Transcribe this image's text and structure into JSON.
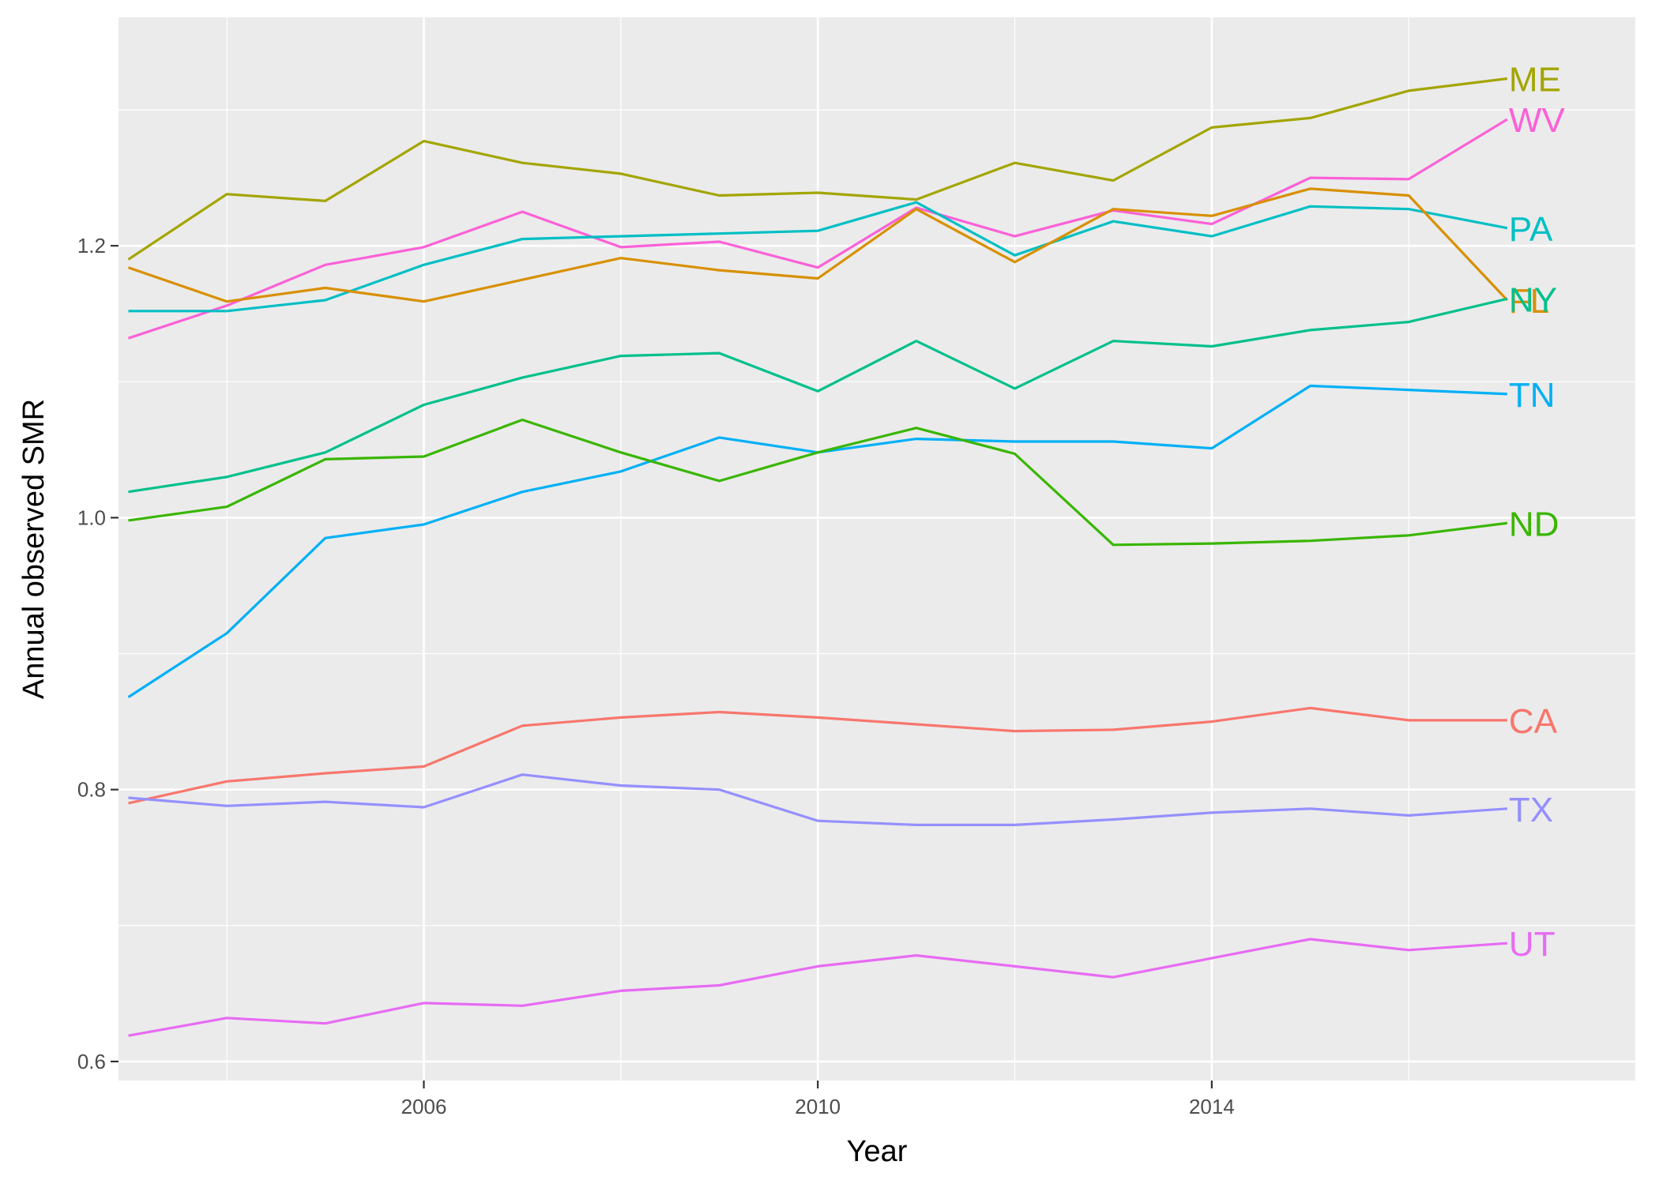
{
  "chart_data": {
    "type": "line",
    "title": "",
    "xlabel": "Year",
    "ylabel": "Annual observed SMR",
    "xlim": [
      2002.9,
      2018.3
    ],
    "ylim": [
      0.586,
      1.368
    ],
    "x_ticks": [
      2006,
      2010,
      2014
    ],
    "y_ticks": [
      0.6,
      0.8,
      1.0,
      1.2
    ],
    "y_tick_labels": [
      "0.6",
      "0.8",
      "1.0",
      "1.2"
    ],
    "x_tick_labels": [
      "2006",
      "2010",
      "2014"
    ],
    "grid": true,
    "panel_background": "#ebebeb",
    "legend": "direct labels at line ends",
    "x": [
      2003,
      2004,
      2005,
      2006,
      2007,
      2008,
      2009,
      2010,
      2011,
      2012,
      2013,
      2014,
      2015,
      2016,
      2017
    ],
    "series": [
      {
        "name": "ME",
        "color": "#a3a500",
        "values": [
          1.19,
          1.238,
          1.233,
          1.277,
          1.261,
          1.253,
          1.237,
          1.239,
          1.234,
          1.261,
          1.248,
          1.287,
          1.294,
          1.314,
          1.323
        ]
      },
      {
        "name": "WV",
        "color": "#fb61d7",
        "values": [
          1.132,
          1.156,
          1.186,
          1.199,
          1.225,
          1.199,
          1.203,
          1.184,
          1.228,
          1.207,
          1.226,
          1.216,
          1.25,
          1.249,
          1.293
        ]
      },
      {
        "name": "PA",
        "color": "#00bfc4",
        "values": [
          1.152,
          1.152,
          1.16,
          1.186,
          1.205,
          1.207,
          1.209,
          1.211,
          1.232,
          1.193,
          1.218,
          1.207,
          1.229,
          1.227,
          1.213
        ]
      },
      {
        "name": "FL",
        "color": "#d89000",
        "values": [
          1.184,
          1.159,
          1.169,
          1.159,
          1.175,
          1.191,
          1.182,
          1.176,
          1.227,
          1.188,
          1.227,
          1.222,
          1.242,
          1.237,
          1.16
        ]
      },
      {
        "name": "NY",
        "color": "#00c08b",
        "values": [
          1.019,
          1.03,
          1.048,
          1.083,
          1.103,
          1.119,
          1.121,
          1.093,
          1.13,
          1.095,
          1.13,
          1.126,
          1.138,
          1.144,
          1.161
        ]
      },
      {
        "name": "TN",
        "color": "#00b0f6",
        "values": [
          0.868,
          0.915,
          0.985,
          0.995,
          1.019,
          1.034,
          1.059,
          1.048,
          1.058,
          1.056,
          1.056,
          1.051,
          1.097,
          1.094,
          1.091
        ]
      },
      {
        "name": "ND",
        "color": "#39b600",
        "values": [
          0.998,
          1.008,
          1.043,
          1.045,
          1.072,
          1.048,
          1.027,
          1.048,
          1.066,
          1.047,
          0.98,
          0.981,
          0.983,
          0.987,
          0.996
        ]
      },
      {
        "name": "CA",
        "color": "#f8766d",
        "values": [
          0.79,
          0.806,
          0.812,
          0.817,
          0.847,
          0.853,
          0.857,
          0.853,
          0.848,
          0.843,
          0.844,
          0.85,
          0.86,
          0.851,
          0.851
        ]
      },
      {
        "name": "TX",
        "color": "#9590ff",
        "values": [
          0.794,
          0.788,
          0.791,
          0.787,
          0.811,
          0.803,
          0.8,
          0.777,
          0.774,
          0.774,
          0.778,
          0.783,
          0.786,
          0.781,
          0.786
        ]
      },
      {
        "name": "UT",
        "color": "#e76bf3",
        "values": [
          0.619,
          0.632,
          0.628,
          0.643,
          0.641,
          0.652,
          0.656,
          0.67,
          0.678,
          0.67,
          0.662,
          0.676,
          0.69,
          0.682,
          0.687
        ]
      }
    ]
  }
}
